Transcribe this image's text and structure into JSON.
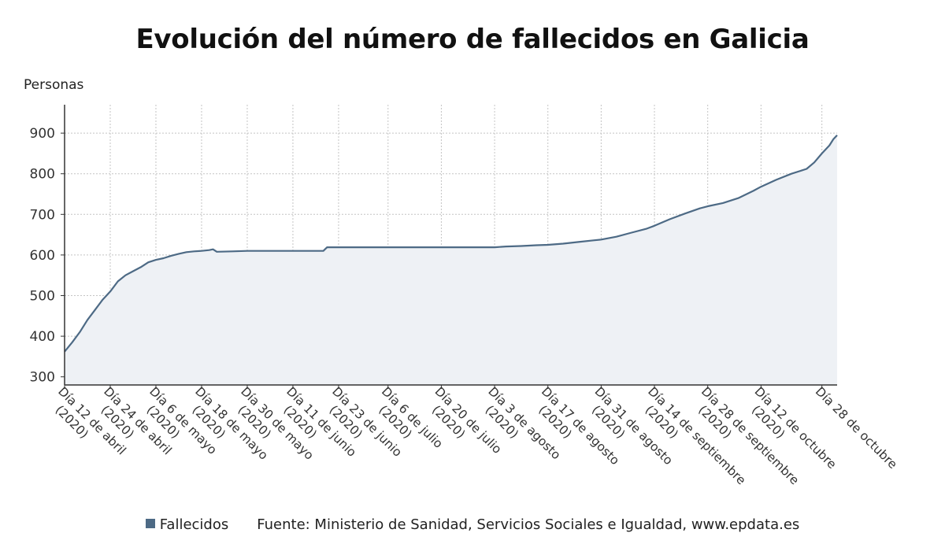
{
  "chart_data": {
    "type": "area",
    "title": "Evolución del número de fallecidos en Galicia",
    "ylabel": "Personas",
    "xlabel": "",
    "ylim": [
      280,
      970
    ],
    "yticks": [
      300,
      400,
      500,
      600,
      700,
      800,
      900
    ],
    "grid": true,
    "line_color": "#4d6a85",
    "fill_color": "#eef1f5",
    "legend_position": "bottom",
    "x_tick_labels": [
      {
        "day": 0,
        "label": "Día 12 de abril (2020)"
      },
      {
        "day": 12,
        "label": "Día 24 de abril (2020)"
      },
      {
        "day": 24,
        "label": "Día 6 de mayo (2020)"
      },
      {
        "day": 36,
        "label": "Día 18 de mayo (2020)"
      },
      {
        "day": 48,
        "label": "Día 30 de mayo (2020)"
      },
      {
        "day": 60,
        "label": "Día 11 de junio (2020)"
      },
      {
        "day": 72,
        "label": "Día 23 de junio (2020)"
      },
      {
        "day": 85,
        "label": "Día 6 de julio (2020)"
      },
      {
        "day": 99,
        "label": "Día 20 de julio (2020)"
      },
      {
        "day": 113,
        "label": "Día 3 de agosto (2020)"
      },
      {
        "day": 127,
        "label": "Día 17 de agosto (2020)"
      },
      {
        "day": 141,
        "label": "Día 31 de agosto (2020)"
      },
      {
        "day": 155,
        "label": "Día 14 de septiembre (2020)"
      },
      {
        "day": 169,
        "label": "Día 28 de septiembre (2020)"
      },
      {
        "day": 183,
        "label": "Día 12 de octubre (2020)"
      },
      {
        "day": 199,
        "label": "Día 28 de octubre"
      }
    ],
    "series": [
      {
        "name": "Fallecidos",
        "points": [
          [
            0,
            362
          ],
          [
            2,
            385
          ],
          [
            4,
            410
          ],
          [
            6,
            440
          ],
          [
            8,
            465
          ],
          [
            10,
            490
          ],
          [
            12,
            510
          ],
          [
            14,
            535
          ],
          [
            16,
            550
          ],
          [
            18,
            560
          ],
          [
            20,
            570
          ],
          [
            22,
            582
          ],
          [
            24,
            588
          ],
          [
            26,
            592
          ],
          [
            28,
            598
          ],
          [
            30,
            603
          ],
          [
            32,
            607
          ],
          [
            34,
            609
          ],
          [
            36,
            610
          ],
          [
            38,
            612
          ],
          [
            39,
            614
          ],
          [
            40,
            608
          ],
          [
            44,
            609
          ],
          [
            48,
            610
          ],
          [
            60,
            610
          ],
          [
            68,
            610
          ],
          [
            69,
            619
          ],
          [
            72,
            619
          ],
          [
            85,
            619
          ],
          [
            99,
            619
          ],
          [
            113,
            619
          ],
          [
            116,
            621
          ],
          [
            120,
            622
          ],
          [
            124,
            624
          ],
          [
            127,
            625
          ],
          [
            131,
            628
          ],
          [
            135,
            632
          ],
          [
            139,
            636
          ],
          [
            141,
            638
          ],
          [
            145,
            645
          ],
          [
            149,
            655
          ],
          [
            153,
            665
          ],
          [
            155,
            672
          ],
          [
            159,
            688
          ],
          [
            163,
            702
          ],
          [
            167,
            715
          ],
          [
            169,
            720
          ],
          [
            173,
            728
          ],
          [
            177,
            740
          ],
          [
            181,
            758
          ],
          [
            183,
            768
          ],
          [
            187,
            785
          ],
          [
            191,
            800
          ],
          [
            195,
            812
          ],
          [
            197,
            828
          ],
          [
            199,
            850
          ],
          [
            201,
            870
          ],
          [
            202,
            885
          ],
          [
            203,
            895
          ]
        ]
      }
    ]
  },
  "legend": {
    "series_label": "Fallecidos",
    "source": "Fuente: Ministerio de Sanidad, Servicios Sociales e Igualdad, www.epdata.es"
  }
}
